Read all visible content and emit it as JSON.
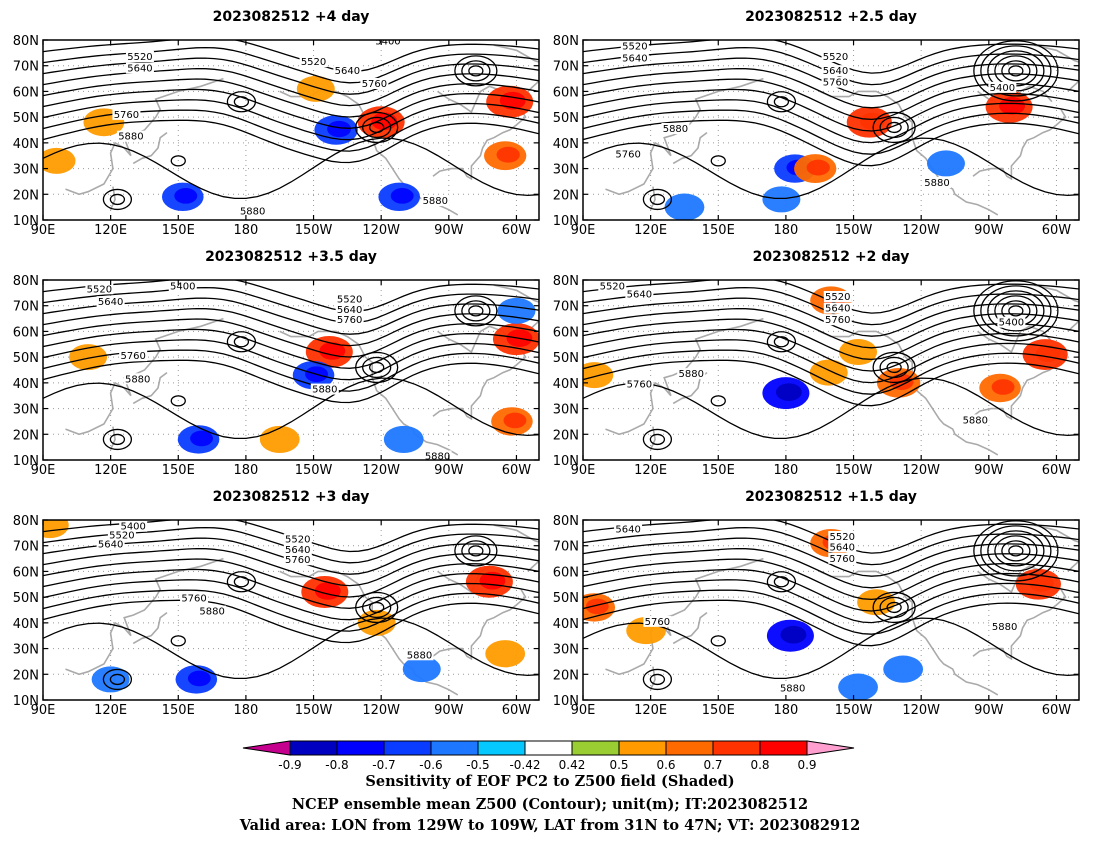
{
  "chart_data": {
    "type": "heatmap",
    "x_ticks": [
      "90E",
      "120E",
      "150E",
      "180",
      "150W",
      "120W",
      "90W",
      "60W"
    ],
    "y_ticks": [
      "10N",
      "20N",
      "30N",
      "40N",
      "50N",
      "60N",
      "70N",
      "80N"
    ],
    "xlim": [
      "90E",
      "50W"
    ],
    "ylim": [
      "10N",
      "80N"
    ],
    "grid": true,
    "contour_levels": [
      5400,
      5520,
      5640,
      5760,
      5880
    ],
    "colorbar": {
      "tick_labels": [
        "-0.9",
        "-0.8",
        "-0.7",
        "-0.6",
        "-0.5",
        "-0.42",
        "0.42",
        "0.5",
        "0.6",
        "0.7",
        "0.8",
        "0.9"
      ],
      "colors": [
        "#c6008e",
        "#0000c0",
        "#0000ff",
        "#0a3cff",
        "#1e78ff",
        "#05c8ff",
        "#ffffff",
        "#9acd32",
        "#ff9b00",
        "#ff6a00",
        "#ff3200",
        "#ff0000",
        "#ff9fd0"
      ]
    },
    "panels": [
      {
        "title": "2023082512  +4 day",
        "contour_labels": [
          {
            "v": "5520",
            "lon": 133,
            "lat": 73
          },
          {
            "v": "5640",
            "lon": 133,
            "lat": 68.5
          },
          {
            "v": "5760",
            "lon": 127,
            "lat": 50.5
          },
          {
            "v": "5880",
            "lon": 129,
            "lat": 42
          },
          {
            "v": "5400",
            "lon": -117,
            "lat": 79
          },
          {
            "v": "5520",
            "lon": -150,
            "lat": 71
          },
          {
            "v": "5640",
            "lon": -135,
            "lat": 67.5
          },
          {
            "v": "5760",
            "lon": -123,
            "lat": 62.5
          },
          {
            "v": "5880",
            "lon": -177,
            "lat": 13
          },
          {
            "v": "5880",
            "lon": -96,
            "lat": 17
          }
        ],
        "shading": [
          {
            "lon": -120,
            "lat": 48,
            "s": 0.75
          },
          {
            "lon": -63,
            "lat": 56,
            "s": 0.75
          },
          {
            "lon": -65,
            "lat": 35,
            "s": 0.62
          },
          {
            "lon": -140,
            "lat": 45,
            "s": -0.65
          },
          {
            "lon": 152,
            "lat": 19,
            "s": -0.6
          },
          {
            "lon": 117,
            "lat": 48,
            "s": 0.58
          },
          {
            "lon": 96,
            "lat": 33,
            "s": 0.5
          },
          {
            "lon": -149,
            "lat": 61,
            "s": 0.5
          },
          {
            "lon": -112,
            "lat": 19,
            "s": -0.6
          }
        ]
      },
      {
        "title": "2023082512  +2.5 day",
        "contour_labels": [
          {
            "v": "5520",
            "lon": 113,
            "lat": 77
          },
          {
            "v": "5640",
            "lon": 113,
            "lat": 72.5
          },
          {
            "v": "5520",
            "lon": -158,
            "lat": 73
          },
          {
            "v": "5640",
            "lon": -158,
            "lat": 67.5
          },
          {
            "v": "5760",
            "lon": -158,
            "lat": 63
          },
          {
            "v": "5400",
            "lon": -84,
            "lat": 61
          },
          {
            "v": "5880",
            "lon": 131,
            "lat": 45
          },
          {
            "v": "5760",
            "lon": 110,
            "lat": 35
          },
          {
            "v": "5880",
            "lon": -113,
            "lat": 24
          }
        ],
        "shading": [
          {
            "lon": -143,
            "lat": 48,
            "s": 0.7
          },
          {
            "lon": -81,
            "lat": 54,
            "s": 0.75
          },
          {
            "lon": -176,
            "lat": 30,
            "s": -0.6
          },
          {
            "lon": -167,
            "lat": 30,
            "s": 0.62
          },
          {
            "lon": 135,
            "lat": 15,
            "s": -0.55
          },
          {
            "lon": 178,
            "lat": 18,
            "s": -0.5
          },
          {
            "lon": -109,
            "lat": 32,
            "s": -0.5
          }
        ]
      },
      {
        "title": "2023082512  +3.5 day",
        "contour_labels": [
          {
            "v": "5520",
            "lon": 115,
            "lat": 76
          },
          {
            "v": "5640",
            "lon": 120,
            "lat": 71
          },
          {
            "v": "5400",
            "lon": 152,
            "lat": 77
          },
          {
            "v": "5520",
            "lon": -134,
            "lat": 72
          },
          {
            "v": "5640",
            "lon": -134,
            "lat": 68
          },
          {
            "v": "5760",
            "lon": -134,
            "lat": 64
          },
          {
            "v": "5760",
            "lon": 130,
            "lat": 50
          },
          {
            "v": "5880",
            "lon": 132,
            "lat": 41
          },
          {
            "v": "5880",
            "lon": -145,
            "lat": 37
          },
          {
            "v": "5880",
            "lon": -95,
            "lat": 11
          }
        ],
        "shading": [
          {
            "lon": -143,
            "lat": 52,
            "s": 0.75
          },
          {
            "lon": -60,
            "lat": 57,
            "s": 0.75
          },
          {
            "lon": -62,
            "lat": 25,
            "s": 0.6
          },
          {
            "lon": -150,
            "lat": 43,
            "s": -0.6
          },
          {
            "lon": 159,
            "lat": 18,
            "s": -0.6
          },
          {
            "lon": -165,
            "lat": 18,
            "s": 0.55
          },
          {
            "lon": -110,
            "lat": 18,
            "s": -0.55
          },
          {
            "lon": 110,
            "lat": 50,
            "s": 0.5
          },
          {
            "lon": -60,
            "lat": 68,
            "s": -0.5
          }
        ]
      },
      {
        "title": "2023082512  +2 day",
        "contour_labels": [
          {
            "v": "5520",
            "lon": 103,
            "lat": 77
          },
          {
            "v": "5640",
            "lon": 115,
            "lat": 74
          },
          {
            "v": "5520",
            "lon": -157,
            "lat": 73
          },
          {
            "v": "5640",
            "lon": -157,
            "lat": 68.5
          },
          {
            "v": "5760",
            "lon": -157,
            "lat": 64
          },
          {
            "v": "5400",
            "lon": -80,
            "lat": 63
          },
          {
            "v": "5880",
            "lon": 138,
            "lat": 43
          },
          {
            "v": "5760",
            "lon": 115,
            "lat": 39
          },
          {
            "v": "5880",
            "lon": -96,
            "lat": 25
          }
        ],
        "shading": [
          {
            "lon": -180,
            "lat": 36,
            "s": -0.75
          },
          {
            "lon": -160,
            "lat": 72,
            "s": 0.6
          },
          {
            "lon": -130,
            "lat": 40,
            "s": 0.65
          },
          {
            "lon": -85,
            "lat": 38,
            "s": 0.6
          },
          {
            "lon": -65,
            "lat": 51,
            "s": 0.7
          },
          {
            "lon": -148,
            "lat": 52,
            "s": 0.5
          },
          {
            "lon": -161,
            "lat": 44,
            "s": 0.5
          },
          {
            "lon": 95,
            "lat": 43,
            "s": 0.5
          }
        ]
      },
      {
        "title": "2023082512  +3 day",
        "contour_labels": [
          {
            "v": "5400",
            "lon": 130,
            "lat": 77
          },
          {
            "v": "5520",
            "lon": 125,
            "lat": 73.5
          },
          {
            "v": "5640",
            "lon": 120,
            "lat": 70
          },
          {
            "v": "5520",
            "lon": -157,
            "lat": 72
          },
          {
            "v": "5640",
            "lon": -157,
            "lat": 68
          },
          {
            "v": "5760",
            "lon": -157,
            "lat": 64
          },
          {
            "v": "5760",
            "lon": 157,
            "lat": 49
          },
          {
            "v": "5880",
            "lon": 165,
            "lat": 44
          },
          {
            "v": "5880",
            "lon": -103,
            "lat": 27
          }
        ],
        "shading": [
          {
            "lon": -145,
            "lat": 52,
            "s": 0.75
          },
          {
            "lon": -72,
            "lat": 56,
            "s": 0.75
          },
          {
            "lon": -65,
            "lat": 28,
            "s": 0.55
          },
          {
            "lon": 158,
            "lat": 18,
            "s": -0.6
          },
          {
            "lon": -122,
            "lat": 40,
            "s": 0.5
          },
          {
            "lon": -102,
            "lat": 22,
            "s": -0.5
          },
          {
            "lon": 120,
            "lat": 18,
            "s": -0.5
          },
          {
            "lon": 93,
            "lat": 78,
            "s": 0.5
          }
        ]
      },
      {
        "title": "2023082512  +1.5 day",
        "contour_labels": [
          {
            "v": "5640",
            "lon": 110,
            "lat": 76
          },
          {
            "v": "5520",
            "lon": -155,
            "lat": 73
          },
          {
            "v": "5640",
            "lon": -155,
            "lat": 69
          },
          {
            "v": "5760",
            "lon": -155,
            "lat": 64.5
          },
          {
            "v": "5760",
            "lon": 123,
            "lat": 40
          },
          {
            "v": "5880",
            "lon": -83,
            "lat": 38
          },
          {
            "v": "5880",
            "lon": -177,
            "lat": 14
          }
        ],
        "shading": [
          {
            "lon": -178,
            "lat": 35,
            "s": -0.75
          },
          {
            "lon": -128,
            "lat": 22,
            "s": -0.55
          },
          {
            "lon": -160,
            "lat": 71,
            "s": 0.6
          },
          {
            "lon": -68,
            "lat": 55,
            "s": 0.7
          },
          {
            "lon": 95,
            "lat": 46,
            "s": 0.6
          },
          {
            "lon": 118,
            "lat": 37,
            "s": 0.55
          },
          {
            "lon": -140,
            "lat": 48,
            "s": 0.5
          },
          {
            "lon": -148,
            "lat": 15,
            "s": -0.55
          }
        ]
      }
    ],
    "caption": [
      "Sensitivity of EOF PC2 to Z500 field (Shaded)",
      "NCEP ensemble mean Z500 (Contour); unit(m); IT:2023082512",
      "Valid area: LON from 129W to 109W, LAT from 31N to 47N; VT: 2023082912"
    ]
  }
}
